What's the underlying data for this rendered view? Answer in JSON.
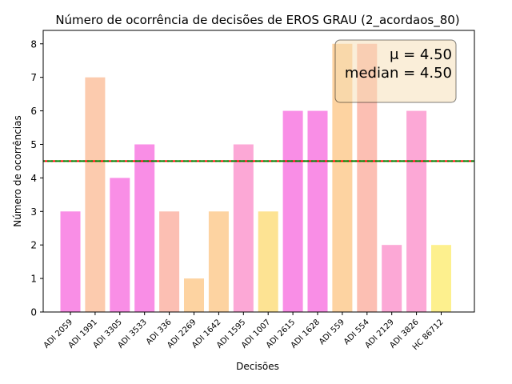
{
  "chart_data": {
    "type": "bar",
    "title": "Número de ocorrência de decisões de EROS GRAU (2_acordaos_80)",
    "xlabel": "Decisões",
    "ylabel": "Número de ocorrências",
    "categories": [
      "ADI 2059",
      "ADI 1991",
      "ADI 3305",
      "ADI 3533",
      "ADI 336",
      "ADI 2269",
      "ADI 1642",
      "ADI 1595",
      "ADI 1007",
      "ADI 2615",
      "ADI 1628",
      "ADI 559",
      "ADI 554",
      "ADI 2129",
      "ADI 3826",
      "HC 86712"
    ],
    "values": [
      3,
      7,
      4,
      5,
      3,
      1,
      3,
      5,
      3,
      6,
      6,
      8,
      8,
      2,
      6,
      2
    ],
    "colors": [
      "#f98ee6",
      "#fccbae",
      "#f98ee6",
      "#f98ee6",
      "#fcbfb3",
      "#fdd3a1",
      "#fdd3a1",
      "#fca8d6",
      "#fde393",
      "#f98ee6",
      "#f98ee6",
      "#fdd3a1",
      "#fcbfb3",
      "#fca8d6",
      "#fca8d6",
      "#fdf08e"
    ],
    "ylim": [
      0,
      8.4
    ],
    "yticks": [
      "0",
      "1",
      "2",
      "3",
      "4",
      "5",
      "6",
      "7",
      "8"
    ],
    "grid": false,
    "mean_line": {
      "value": 4.5,
      "color": "#ff0000",
      "style": "dashed"
    },
    "median_line": {
      "value": 4.5,
      "color": "#008000",
      "style": "dashed"
    },
    "stats_box": {
      "mean_label": "μ = 4.50",
      "median_label": "median = 4.50",
      "background": "#f5deb3",
      "placement": "top-right"
    }
  }
}
